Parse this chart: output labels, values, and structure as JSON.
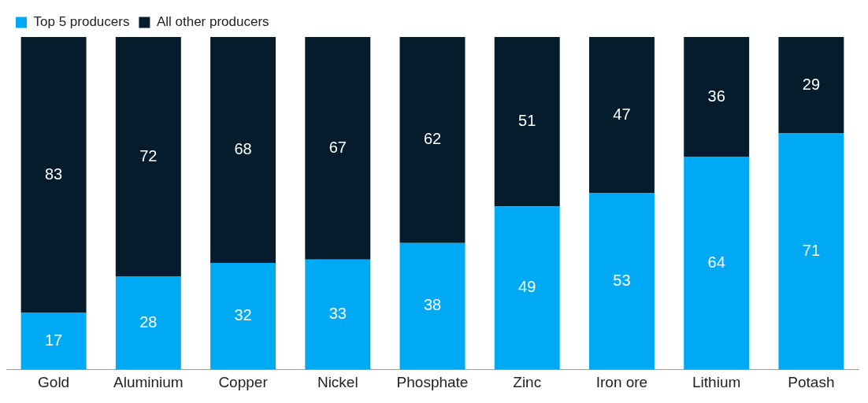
{
  "chart_data": {
    "type": "bar",
    "stacked": true,
    "categories": [
      "Gold",
      "Aluminium",
      "Copper",
      "Nickel",
      "Phosphate",
      "Zinc",
      "Iron ore",
      "Lithium",
      "Potash"
    ],
    "series": [
      {
        "name": "Top 5 producers",
        "color": "#00a9f4",
        "values": [
          17,
          28,
          32,
          33,
          38,
          49,
          53,
          64,
          71
        ]
      },
      {
        "name": "All other producers",
        "color": "#051c2c",
        "values": [
          83,
          72,
          68,
          67,
          62,
          51,
          47,
          36,
          29
        ]
      }
    ],
    "data_labels": true,
    "legend": "top left",
    "grid": false,
    "tick_labels": "x"
  }
}
